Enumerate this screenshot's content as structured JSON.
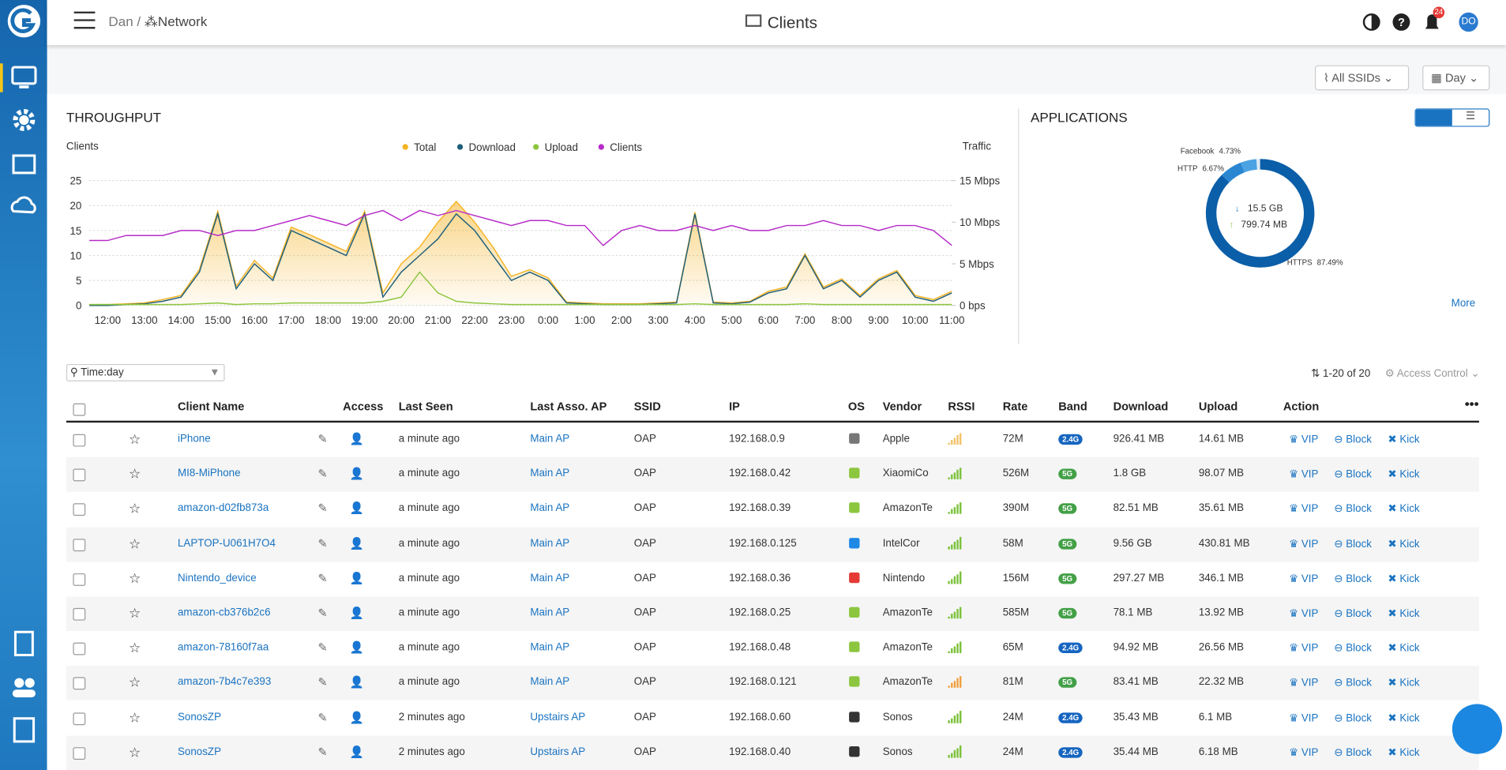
{
  "nav": {
    "breadcrumb": [
      "Dan",
      "Network"
    ],
    "title": "Clients",
    "notifications": "24",
    "avatar": "DO"
  },
  "filters": {
    "ssid": "All SSIDs",
    "period": "Day"
  },
  "chart_data": [
    {
      "type": "line",
      "title": "THROUGHPUT",
      "ylabel": "Clients",
      "y2label": "Traffic",
      "categories": [
        null,
        "12:00",
        null,
        "13:00",
        null,
        "14:00",
        null,
        "15:00",
        null,
        "16:00",
        null,
        "17:00",
        null,
        "18:00",
        null,
        "19:00",
        null,
        "20:00",
        null,
        "21:00",
        null,
        "22:00",
        null,
        "23:00",
        null,
        "0:00",
        null,
        "1:00",
        null,
        "2:00",
        null,
        "3:00",
        null,
        "4:00",
        null,
        "5:00",
        null,
        "6:00",
        null,
        "7:00",
        null,
        "8:00",
        null,
        "9:00",
        null,
        "10:00",
        null,
        "11:00"
      ],
      "ylim": [
        0,
        25
      ],
      "yticks": [
        0,
        5,
        10,
        15,
        20,
        25
      ],
      "y2lim": [
        0,
        15
      ],
      "y2ticks": [
        {
          "value": 0,
          "label": "0 bps"
        },
        {
          "value": 5,
          "label": "5 Mbps"
        },
        {
          "value": 10,
          "label": "10 Mbps"
        },
        {
          "value": 15,
          "label": "15 Mbps"
        }
      ],
      "grid": true,
      "series": [
        {
          "name": "Total",
          "color": "#f5b324",
          "axis": "y2",
          "values": [
            0.1,
            0.1,
            0.2,
            0.3,
            0.7,
            1.2,
            4.3,
            11.3,
            2.3,
            5.4,
            3.3,
            9.4,
            8.5,
            7.5,
            6.5,
            11.3,
            1.5,
            5,
            7,
            10,
            12.5,
            10,
            7,
            3.5,
            4.3,
            3.3,
            0.4,
            0.3,
            0.2,
            0.2,
            0.2,
            0.3,
            0.4,
            11.2,
            0.4,
            0.3,
            0.5,
            1.7,
            2.2,
            6.2,
            2.2,
            3.2,
            1.2,
            3.2,
            4.2,
            1.2,
            0.7,
            1.7
          ]
        },
        {
          "name": "Download",
          "color": "#1f5f7a",
          "axis": "y2",
          "values": [
            0,
            0,
            0.1,
            0.2,
            0.5,
            1,
            4,
            11,
            2,
            5,
            3,
            9,
            8,
            7,
            6,
            11,
            1,
            4,
            6,
            8,
            11,
            9,
            6,
            3,
            4,
            3,
            0.3,
            0.2,
            0.1,
            0.1,
            0.1,
            0.2,
            0.3,
            11,
            0.3,
            0.2,
            0.4,
            1.5,
            2,
            6,
            2,
            3,
            1,
            3,
            4,
            1,
            0.5,
            1.5
          ]
        },
        {
          "name": "Upload",
          "color": "#8cc63f",
          "axis": "y2",
          "values": [
            0.1,
            0.1,
            0.1,
            0.1,
            0.1,
            0.1,
            0.2,
            0.3,
            0.1,
            0.2,
            0.2,
            0.3,
            0.3,
            0.3,
            0.3,
            0.3,
            0.5,
            1,
            4,
            1.5,
            0.5,
            0.3,
            0.2,
            0.1,
            0.1,
            0.1,
            0.1,
            0.1,
            0.1,
            0.1,
            0.1,
            0.1,
            0.1,
            0.2,
            0.1,
            0.1,
            0.1,
            0.1,
            0.1,
            0.2,
            0.1,
            0.1,
            0.1,
            0.1,
            0.1,
            0.1,
            0.1,
            0.1
          ]
        },
        {
          "name": "Clients",
          "color": "#b62cc8",
          "axis": "y",
          "values": [
            13,
            13,
            14,
            14,
            14,
            15,
            15,
            14,
            15,
            15,
            16,
            17,
            18,
            17,
            16,
            18,
            19,
            17,
            19,
            18,
            19,
            18,
            17,
            16,
            17,
            17,
            16,
            16,
            12,
            15,
            16,
            15,
            15,
            16,
            15,
            16,
            15,
            15,
            16,
            16,
            17,
            16,
            16,
            15,
            16,
            16,
            15,
            12
          ]
        }
      ]
    },
    {
      "type": "pie",
      "title": "APPLICATIONS",
      "categories": [
        "HTTPS",
        "HTTP",
        "Facebook"
      ],
      "values": [
        87.49,
        6.67,
        4.73
      ],
      "value_labels": [
        "87.49%",
        "6.67%",
        "4.73%"
      ],
      "colors": [
        "#0b5ea8",
        "#2a86d1",
        "#4ba3e3"
      ],
      "center": {
        "download": "15.5 GB",
        "upload": "799.74 MB"
      },
      "link": "More"
    }
  ],
  "table": {
    "search": "Time:day",
    "count": "1-20 of 20",
    "access_control": "Access Control",
    "columns": [
      "Client Name",
      "Access",
      "Last Seen",
      "Last Asso. AP",
      "SSID",
      "IP",
      "OS",
      "Vendor",
      "RSSI",
      "Rate",
      "Band",
      "Download",
      "Upload",
      "Action"
    ],
    "actions": [
      "VIP",
      "Block",
      "Kick"
    ],
    "rows": [
      [
        "iPhone",
        "a minute ago",
        "Main AP",
        "OAP",
        "192.168.0.9",
        "Apple",
        "72M",
        "2.4G",
        "926.41 MB",
        "14.61 MB"
      ],
      [
        "MI8-MiPhone",
        "a minute ago",
        "Main AP",
        "OAP",
        "192.168.0.42",
        "XiaomiCo",
        "526M",
        "5G",
        "1.8 GB",
        "98.07 MB"
      ],
      [
        "amazon-d02fb873a",
        "a minute ago",
        "Main AP",
        "OAP",
        "192.168.0.39",
        "AmazonTe",
        "390M",
        "5G",
        "82.51 MB",
        "35.61 MB"
      ],
      [
        "LAPTOP-U061H7O4",
        "a minute ago",
        "Main AP",
        "OAP",
        "192.168.0.125",
        "IntelCor",
        "58M",
        "5G",
        "9.56 GB",
        "430.81 MB"
      ],
      [
        "Nintendo_device",
        "a minute ago",
        "Main AP",
        "OAP",
        "192.168.0.36",
        "Nintendo",
        "156M",
        "5G",
        "297.27 MB",
        "346.1 MB"
      ],
      [
        "amazon-cb376b2c6",
        "a minute ago",
        "Main AP",
        "OAP",
        "192.168.0.25",
        "AmazonTe",
        "585M",
        "5G",
        "78.1 MB",
        "13.92 MB"
      ],
      [
        "amazon-78160f7aa",
        "a minute ago",
        "Main AP",
        "OAP",
        "192.168.0.48",
        "AmazonTe",
        "65M",
        "2.4G",
        "94.92 MB",
        "26.56 MB"
      ],
      [
        "amazon-7b4c7e393",
        "a minute ago",
        "Main AP",
        "OAP",
        "192.168.0.121",
        "AmazonTe",
        "81M",
        "5G",
        "83.41 MB",
        "22.32 MB"
      ],
      [
        "SonosZP",
        "2 minutes ago",
        "Upstairs AP",
        "OAP",
        "192.168.0.60",
        "Sonos",
        "24M",
        "2.4G",
        "35.43 MB",
        "6.1 MB"
      ],
      [
        "SonosZP",
        "2 minutes ago",
        "Upstairs AP",
        "OAP",
        "192.168.0.40",
        "Sonos",
        "24M",
        "2.4G",
        "35.44 MB",
        "6.18 MB"
      ]
    ]
  }
}
